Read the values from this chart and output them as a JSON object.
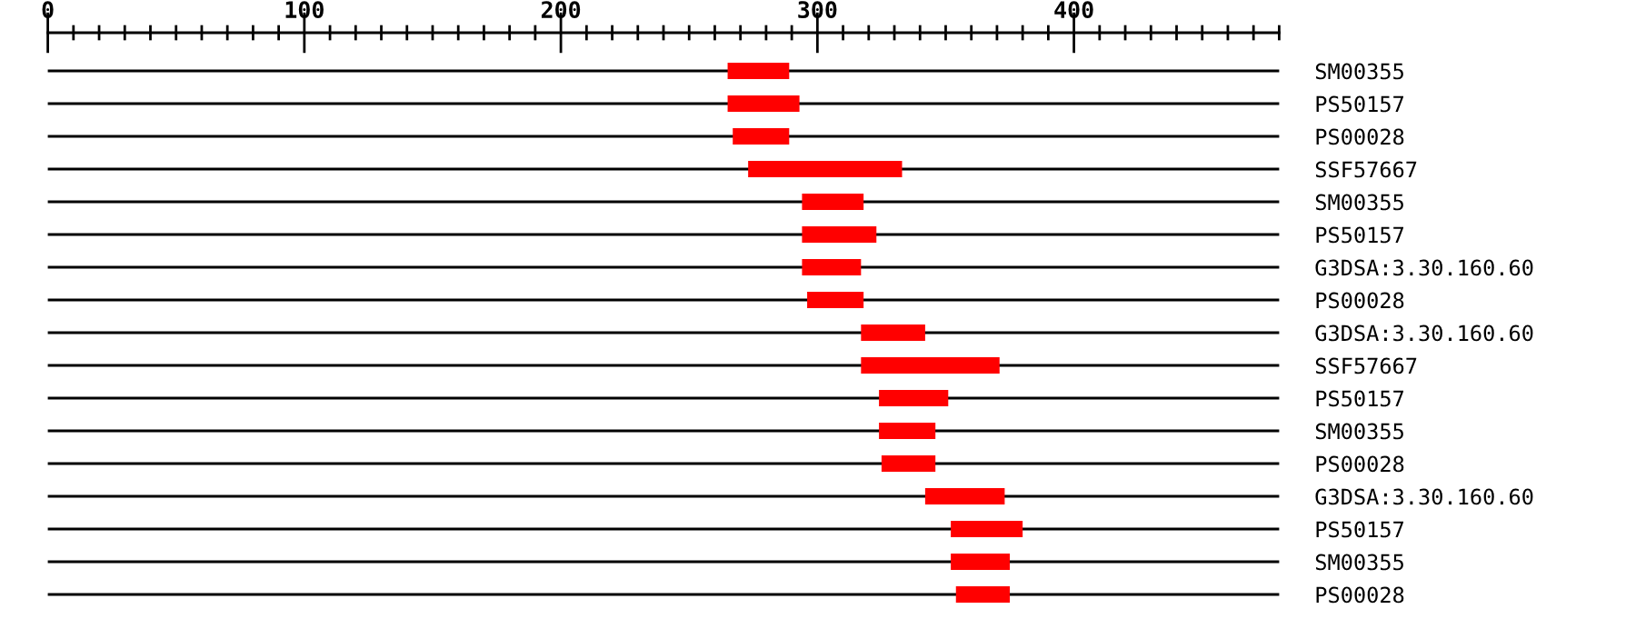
{
  "chart_data": {
    "type": "bar",
    "orientation": "horizontal",
    "grid": "y",
    "categories": [
      "SM00355",
      "PS50157",
      "PS00028",
      "SSF57667",
      "SM00355",
      "PS50157",
      "G3DSA:3.30.160.60",
      "PS00028",
      "G3DSA:3.30.160.60",
      "SSF57667",
      "PS50157",
      "SM00355",
      "PS00028",
      "G3DSA:3.30.160.60",
      "PS50157",
      "SM00355",
      "PS00028"
    ],
    "base": [
      265,
      265,
      267,
      273,
      294,
      294,
      294,
      296,
      317,
      317,
      324,
      324,
      325,
      342,
      352,
      352,
      354
    ],
    "values": [
      24,
      28,
      22,
      60,
      24,
      29,
      23,
      22,
      25,
      54,
      27,
      22,
      21,
      31,
      28,
      23,
      21
    ],
    "color": "#ff0000",
    "xlim": [
      0,
      480
    ],
    "xticks": [
      0,
      {
        "value": 10,
        "label": null
      },
      {
        "value": 20,
        "label": null
      },
      {
        "value": 30,
        "label": null
      },
      {
        "value": 40,
        "label": null
      },
      {
        "value": 50,
        "label": null
      },
      {
        "value": 60,
        "label": null
      },
      {
        "value": 70,
        "label": null
      },
      {
        "value": 80,
        "label": null
      },
      {
        "value": 90,
        "label": null
      },
      100,
      {
        "value": 110,
        "label": null
      },
      {
        "value": 120,
        "label": null
      },
      {
        "value": 130,
        "label": null
      },
      {
        "value": 140,
        "label": null
      },
      {
        "value": 150,
        "label": null
      },
      {
        "value": 160,
        "label": null
      },
      {
        "value": 170,
        "label": null
      },
      {
        "value": 180,
        "label": null
      },
      {
        "value": 190,
        "label": null
      },
      200,
      {
        "value": 210,
        "label": null
      },
      {
        "value": 220,
        "label": null
      },
      {
        "value": 230,
        "label": null
      },
      {
        "value": 240,
        "label": null
      },
      {
        "value": 250,
        "label": null
      },
      {
        "value": 260,
        "label": null
      },
      {
        "value": 270,
        "label": null
      },
      {
        "value": 280,
        "label": null
      },
      {
        "value": 290,
        "label": null
      },
      300,
      {
        "value": 310,
        "label": null
      },
      {
        "value": 320,
        "label": null
      },
      {
        "value": 330,
        "label": null
      },
      {
        "value": 340,
        "label": null
      },
      {
        "value": 350,
        "label": null
      },
      {
        "value": 360,
        "label": null
      },
      {
        "value": 370,
        "label": null
      },
      {
        "value": 380,
        "label": null
      },
      {
        "value": 390,
        "label": null
      },
      400,
      {
        "value": 410,
        "label": null
      },
      {
        "value": 420,
        "label": null
      },
      {
        "value": 430,
        "label": null
      },
      {
        "value": 440,
        "label": null
      },
      {
        "value": 450,
        "label": null
      },
      {
        "value": 460,
        "label": null
      },
      {
        "value": 470,
        "label": null
      },
      {
        "value": 480,
        "label": null
      }
    ]
  }
}
